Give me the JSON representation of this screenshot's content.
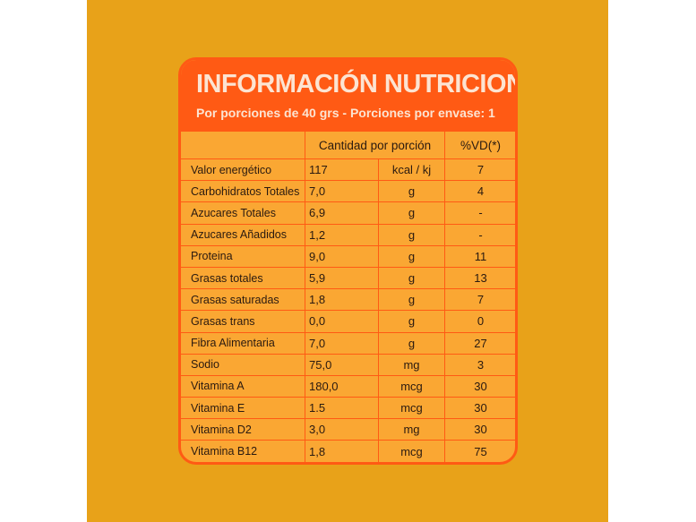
{
  "label": {
    "title": "INFORMACIÓN NUTRICIONAL",
    "subtitle": "Por porciones de 40 grs - Porciones por envase: 1",
    "columns": {
      "quantity": "Cantidad por porción",
      "vd": "%VD(*)"
    },
    "rows": [
      {
        "nutrient": "Valor energético",
        "qty": "117",
        "unit": "kcal / kj",
        "vd": "7"
      },
      {
        "nutrient": "Carbohidratos Totales",
        "qty": "7,0",
        "unit": "g",
        "vd": "4"
      },
      {
        "nutrient": "Azucares Totales",
        "qty": "6,9",
        "unit": "g",
        "vd": "-"
      },
      {
        "nutrient": "Azucares Añadidos",
        "qty": "1,2",
        "unit": "g",
        "vd": "-"
      },
      {
        "nutrient": "Proteina",
        "qty": "9,0",
        "unit": "g",
        "vd": "11"
      },
      {
        "nutrient": "Grasas totales",
        "qty": "5,9",
        "unit": "g",
        "vd": "13"
      },
      {
        "nutrient": "Grasas saturadas",
        "qty": "1,8",
        "unit": "g",
        "vd": "7"
      },
      {
        "nutrient": "Grasas trans",
        "qty": "0,0",
        "unit": "g",
        "vd": "0"
      },
      {
        "nutrient": "Fibra Alimentaria",
        "qty": "7,0",
        "unit": "g",
        "vd": "27"
      },
      {
        "nutrient": "Sodio",
        "qty": "75,0",
        "unit": "mg",
        "vd": "3"
      },
      {
        "nutrient": "Vitamina A",
        "qty": "180,0",
        "unit": "mcg",
        "vd": "30"
      },
      {
        "nutrient": "Vitamina E",
        "qty": "1.5",
        "unit": "mcg",
        "vd": "30"
      },
      {
        "nutrient": "Vitamina D2",
        "qty": "3,0",
        "unit": "mg",
        "vd": "30"
      },
      {
        "nutrient": "Vitamina B12",
        "qty": "1,8",
        "unit": "mcg",
        "vd": "75"
      }
    ]
  },
  "colors": {
    "background": "#E8A219",
    "header": "#FF5A14",
    "table": "#FAA733",
    "header_text": "#FCE4D2"
  }
}
